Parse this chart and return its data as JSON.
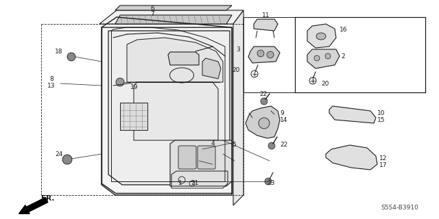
{
  "bg_color": "#ffffff",
  "line_color": "#1a1a1a",
  "diagram_code": "S5S4-B3910",
  "figsize": [
    6.4,
    3.2
  ],
  "dpi": 100
}
